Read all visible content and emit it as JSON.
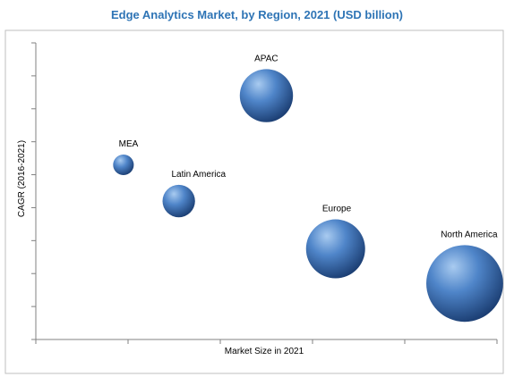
{
  "chart_data": {
    "type": "scatter",
    "title": "Edge Analytics Market, by Region, 2021 (USD billion)",
    "xlabel": "Market Size in 2021",
    "ylabel": "CAGR (2016-2021)",
    "xlim": [
      0,
      5
    ],
    "ylim": [
      0,
      9
    ],
    "grid": false,
    "show_tick_labels": false,
    "colors": {
      "bubble_light": "#a9cbf0",
      "bubble_mid": "#4f85c9",
      "bubble_dark": "#1c3f74",
      "title": "#2e74b5",
      "axis": "#808080",
      "frame": "#bfbfbf"
    },
    "points": [
      {
        "label": "MEA",
        "x": 0.95,
        "y": 5.3,
        "size": 0.35
      },
      {
        "label": "Latin America",
        "x": 1.55,
        "y": 4.2,
        "size": 0.55
      },
      {
        "label": "APAC",
        "x": 2.5,
        "y": 7.4,
        "size": 0.9
      },
      {
        "label": "Europe",
        "x": 3.25,
        "y": 2.75,
        "size": 1.0
      },
      {
        "label": "North America",
        "x": 4.65,
        "y": 1.7,
        "size": 1.3
      }
    ]
  }
}
